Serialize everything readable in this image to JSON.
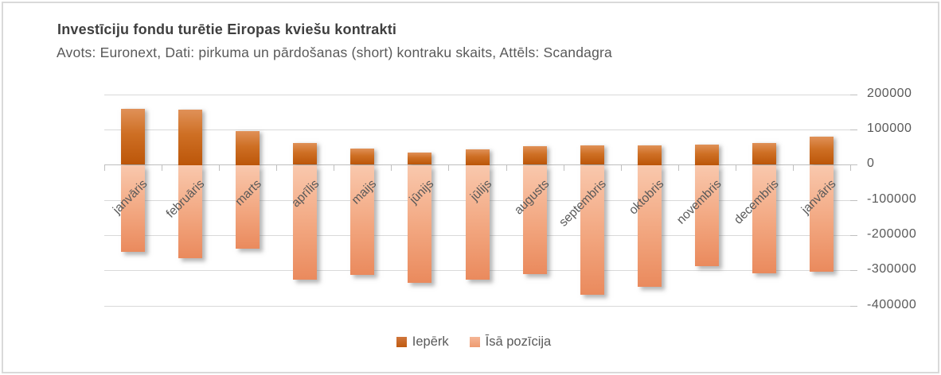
{
  "header": {
    "title": "Investīciju fondu turētie Eiropas kviešu kontrakti",
    "subtitle": "Avots: Euronext, Dati: pirkuma un pārdošanas (short) kontraku skaits, Attēls: Scandagra"
  },
  "chart_data": {
    "type": "bar",
    "stacked": true,
    "title": "Investīciju fondu turētie Eiropas kviešu kontrakti",
    "categories": [
      "janvāris",
      "februāris",
      "marts",
      "aprīlis",
      "maijs",
      "jūnijs",
      "jūlijs",
      "augusts",
      "septembris",
      "oktobris",
      "novembris",
      "decembris",
      "janvāris"
    ],
    "series": [
      {
        "name": "Iepērk",
        "color_top": "#d0763c",
        "color_bottom": "#bf5a10",
        "values": [
          158000,
          157000,
          96000,
          62000,
          45000,
          34000,
          44000,
          52000,
          54000,
          56000,
          58000,
          61000,
          80000
        ]
      },
      {
        "name": "Īsā pozīcija",
        "color_top": "#f5b696",
        "color_bottom": "#ee9a6f",
        "values": [
          -246000,
          -263000,
          -237000,
          -325000,
          -312000,
          -333000,
          -325000,
          -310000,
          -367000,
          -345000,
          -286000,
          -307000,
          -302000
        ]
      }
    ],
    "ylim": [
      -400000,
      200000
    ],
    "yticks": [
      200000,
      100000,
      0,
      -100000,
      -200000,
      -300000,
      -400000
    ],
    "grid": true,
    "y_axis_side": "right",
    "legend_position": "bottom",
    "gridline_color": "#d9d9d9",
    "axis_color": "#bfbfbf",
    "label_color": "#595959"
  }
}
